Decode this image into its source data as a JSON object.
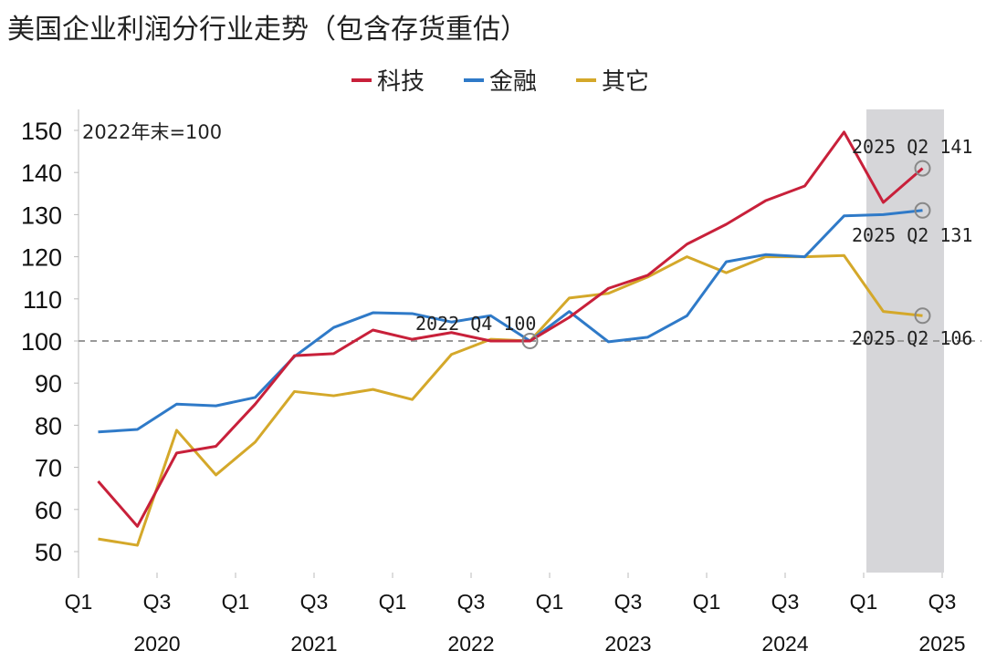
{
  "chart_data": {
    "type": "line",
    "title": "美国企业利润分行业走势（包含存货重估）",
    "note": "2022年末=100",
    "xlabel": "",
    "ylabel": "",
    "ylim": [
      45,
      155
    ],
    "yticks": [
      50,
      60,
      70,
      80,
      90,
      100,
      110,
      120,
      130,
      140,
      150
    ],
    "x": [
      "2020Q1",
      "2020Q2",
      "2020Q3",
      "2020Q4",
      "2021Q1",
      "2021Q2",
      "2021Q3",
      "2021Q4",
      "2022Q1",
      "2022Q2",
      "2022Q3",
      "2022Q4",
      "2023Q1",
      "2023Q2",
      "2023Q3",
      "2023Q4",
      "2024Q1",
      "2024Q2",
      "2024Q3",
      "2024Q4",
      "2025Q1",
      "2025Q2"
    ],
    "xtick_quarters": [
      "Q1",
      "Q3",
      "Q1",
      "Q3",
      "Q1",
      "Q3",
      "Q1",
      "Q3",
      "Q1",
      "Q3",
      "Q1",
      "Q3"
    ],
    "xtick_years": [
      "2020",
      "2021",
      "2022",
      "2023",
      "2024",
      "2025"
    ],
    "legend_position": "top-center",
    "reference_line": 100,
    "shaded_region": [
      "2025Q1",
      "2025Q2"
    ],
    "series": [
      {
        "name": "科技",
        "color": "#c8203a",
        "values": [
          66.7,
          56,
          73.4,
          75,
          85,
          96.5,
          97,
          102.6,
          100.4,
          102,
          100,
          100,
          105.6,
          112.5,
          115.6,
          123,
          127.7,
          133.3,
          136.8,
          149.6,
          132.9,
          141
        ]
      },
      {
        "name": "金融",
        "color": "#2f7ac8",
        "values": [
          78.4,
          79,
          85,
          84.6,
          86.6,
          96.3,
          103.2,
          106.7,
          106.5,
          104.5,
          106,
          100,
          107,
          99.8,
          100.9,
          106,
          118.8,
          120.5,
          120,
          129.7,
          130,
          131
        ]
      },
      {
        "name": "其它",
        "color": "#d4a82a",
        "values": [
          53,
          51.5,
          78.8,
          68.2,
          76,
          88,
          87,
          88.5,
          86.1,
          96.8,
          100.4,
          100,
          110.2,
          111.3,
          115.2,
          120,
          116.2,
          120,
          120,
          120.3,
          107,
          106
        ]
      }
    ],
    "annotations": [
      {
        "text": "2022 Q4 100",
        "x": "2022Q4",
        "y": 100
      },
      {
        "text": "2025 Q2 141",
        "x": "2025Q2",
        "y": 141
      },
      {
        "text": "2025 Q2 131",
        "x": "2025Q2",
        "y": 131
      },
      {
        "text": "2025 Q2 106",
        "x": "2025Q2",
        "y": 106
      }
    ]
  }
}
